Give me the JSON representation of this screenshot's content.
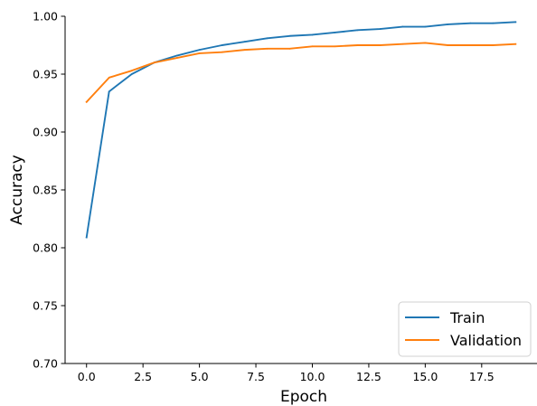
{
  "chart_data": {
    "type": "line",
    "xlabel": "Epoch",
    "ylabel": "Accuracy",
    "xlim": [
      -0.95,
      19.95
    ],
    "ylim": [
      0.7,
      1.0
    ],
    "xticks": [
      0.0,
      2.5,
      5.0,
      7.5,
      10.0,
      12.5,
      15.0,
      17.5
    ],
    "xtick_labels": [
      "0.0",
      "2.5",
      "5.0",
      "7.5",
      "10.0",
      "12.5",
      "15.0",
      "17.5"
    ],
    "yticks": [
      0.7,
      0.75,
      0.8,
      0.85,
      0.9,
      0.95,
      1.0
    ],
    "ytick_labels": [
      "0.70",
      "0.75",
      "0.80",
      "0.85",
      "0.90",
      "0.95",
      "1.00"
    ],
    "grid": false,
    "legend_position": "lower-right",
    "x": [
      0,
      1,
      2,
      3,
      4,
      5,
      6,
      7,
      8,
      9,
      10,
      11,
      12,
      13,
      14,
      15,
      16,
      17,
      18,
      19
    ],
    "series": [
      {
        "name": "Train",
        "color": "#1f77b4",
        "values": [
          0.809,
          0.935,
          0.95,
          0.96,
          0.966,
          0.971,
          0.975,
          0.978,
          0.981,
          0.983,
          0.984,
          0.986,
          0.988,
          0.989,
          0.991,
          0.991,
          0.993,
          0.994,
          0.994,
          0.995
        ]
      },
      {
        "name": "Validation",
        "color": "#ff7f0e",
        "values": [
          0.926,
          0.947,
          0.953,
          0.96,
          0.964,
          0.968,
          0.969,
          0.971,
          0.972,
          0.972,
          0.974,
          0.974,
          0.975,
          0.975,
          0.976,
          0.977,
          0.975,
          0.975,
          0.975,
          0.976
        ]
      }
    ]
  }
}
